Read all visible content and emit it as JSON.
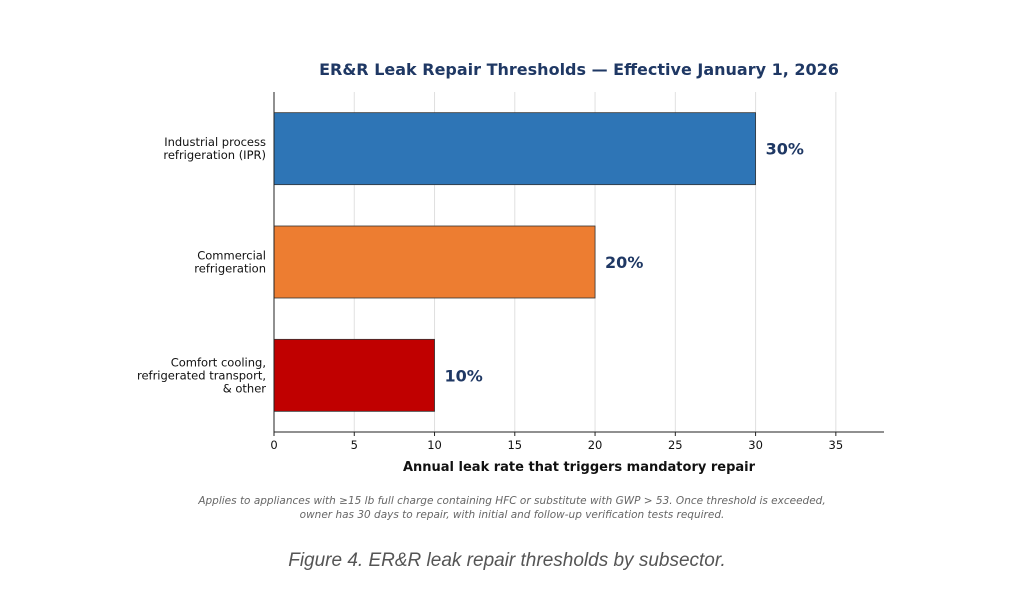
{
  "chart_data": {
    "type": "bar",
    "orientation": "horizontal",
    "title": "ER&R Leak Repair Thresholds — Effective January 1, 2026",
    "xlabel": "Annual leak rate that triggers mandatory repair",
    "ylabel": "",
    "categories": [
      [
        "Industrial process",
        "refrigeration (IPR)"
      ],
      [
        "Commercial",
        "refrigeration"
      ],
      [
        "Comfort cooling,",
        "refrigerated transport,",
        "& other"
      ]
    ],
    "values": [
      30,
      20,
      10
    ],
    "value_labels": [
      "30%",
      "20%",
      "10%"
    ],
    "bar_colors": [
      "#2e75b6",
      "#ed7d31",
      "#c00000"
    ],
    "label_color": "#1f3864",
    "xlim": [
      0,
      38
    ],
    "xticks": [
      0,
      5,
      10,
      15,
      20,
      25,
      30,
      35
    ],
    "grid": "vertical"
  },
  "note_lines": [
    "Applies to appliances with ≥15 lb full charge containing HFC or substitute with GWP > 53. Once threshold is exceeded,",
    "owner has 30 days to repair, with initial and follow-up verification tests required."
  ],
  "caption": "Figure 4. ER&R leak repair thresholds by subsector."
}
